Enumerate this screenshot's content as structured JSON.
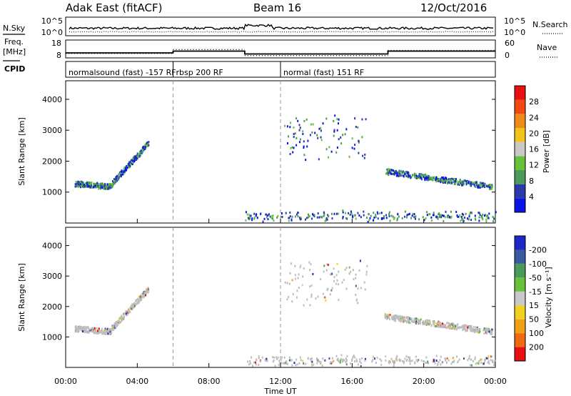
{
  "header": {
    "radar": "Adak East (fitACF)",
    "beam": "Beam 16",
    "date": "12/Oct/2016"
  },
  "noise_panel": {
    "left_label": "N.Sky",
    "right_label": "N.Search",
    "left_ticks": [
      "10^5",
      "10^0"
    ],
    "right_ticks": [
      "10^5",
      "10^0"
    ]
  },
  "freq_panel": {
    "left_label_line1": "Freq.",
    "left_label_line2": "[MHz]",
    "right_label": "Nave",
    "left_ticks": [
      "18",
      "8"
    ],
    "right_ticks": [
      "60",
      "0"
    ],
    "freq_mhz_segments": [
      {
        "start_h": 0,
        "end_h": 6,
        "value": 10.8
      },
      {
        "start_h": 6,
        "end_h": 10,
        "value": 11.8
      },
      {
        "start_h": 10,
        "end_h": 18,
        "value": 10.2
      },
      {
        "start_h": 18,
        "end_h": 24,
        "value": 11.8
      }
    ],
    "nave_segments": [
      {
        "start_h": 0,
        "end_h": 6,
        "value": 15
      },
      {
        "start_h": 6,
        "end_h": 10,
        "value": 28
      },
      {
        "start_h": 10,
        "end_h": 18,
        "value": 8
      },
      {
        "start_h": 18,
        "end_h": 24,
        "value": 25
      }
    ]
  },
  "cpid": {
    "label": "CPID",
    "modes": [
      {
        "name": "normalsound (fast) -157 RF",
        "start_h": 0
      },
      {
        "name": "rbsp 200 RF",
        "start_h": 6
      },
      {
        "name": "normal (fast) 151 RF",
        "start_h": 12
      }
    ]
  },
  "colors": {
    "power_scale": [
      "#0a14e6",
      "#2a3aa8",
      "#4a9a5a",
      "#66c23a",
      "#c8c8c8",
      "#f0c418",
      "#f08a1a",
      "#f04a12",
      "#e81010"
    ],
    "velocity_scale": [
      "#1e28c8",
      "#3a5aa0",
      "#4a9a5a",
      "#66c23a",
      "#c8c8c8",
      "#f0d020",
      "#f0a018",
      "#f06a14",
      "#e81010"
    ],
    "gray_scatter": "#bdbdbd",
    "dashed_marker": "#999999"
  },
  "chart_data": [
    {
      "type": "heatmap",
      "title": "",
      "xlabel": "",
      "ylabel": "Slant Range [km]",
      "ylim": [
        0,
        4600
      ],
      "xlim_hours": [
        0,
        24
      ],
      "y_ticks": [
        "1000",
        "2000",
        "3000",
        "4000"
      ],
      "colorbar_label": "Power [dB]",
      "colorbar_ticks": [
        "4",
        "8",
        "12",
        "16",
        "20",
        "24",
        "28"
      ],
      "colorbar_range": [
        0,
        32
      ],
      "regions": [
        {
          "name": "morning band",
          "start_h": 0.5,
          "end_h": 4.6,
          "range_km_start": 1300,
          "range_km_end": 2600
        },
        {
          "name": "midday sparse echoes",
          "start_h": 12.2,
          "end_h": 16.8,
          "range_km_start": 2100,
          "range_km_end": 3500
        },
        {
          "name": "evening band",
          "start_h": 17.8,
          "end_h": 23.8,
          "range_km_start": 1700,
          "range_km_end": 1200
        },
        {
          "name": "near-range ground scatter",
          "start_h": 10.0,
          "end_h": 24.0,
          "range_km_start": 150,
          "range_km_end": 350
        }
      ]
    },
    {
      "type": "heatmap",
      "title": "",
      "xlabel": "Time UT",
      "ylabel": "Slant Range [km]",
      "ylim": [
        0,
        4600
      ],
      "xlim_hours": [
        0,
        24
      ],
      "y_ticks": [
        "1000",
        "2000",
        "3000",
        "4000"
      ],
      "x_ticks": [
        "00:00",
        "04:00",
        "08:00",
        "12:00",
        "16:00",
        "20:00",
        "00:00"
      ],
      "colorbar_label": "Velocity [m s⁻¹]",
      "colorbar_ticks": [
        "200",
        "100",
        "50",
        "15",
        "-15",
        "-50",
        "-100",
        "-200"
      ],
      "regions": [
        {
          "name": "morning band",
          "start_h": 0.5,
          "end_h": 4.6,
          "range_km_start": 1300,
          "range_km_end": 2600
        },
        {
          "name": "midday sparse echoes",
          "start_h": 12.2,
          "end_h": 16.8,
          "range_km_start": 2100,
          "range_km_end": 3500
        },
        {
          "name": "evening band",
          "start_h": 17.8,
          "end_h": 23.8,
          "range_km_start": 1700,
          "range_km_end": 1200
        },
        {
          "name": "near-range ground scatter",
          "start_h": 10.0,
          "end_h": 24.0,
          "range_km_start": 150,
          "range_km_end": 350
        }
      ]
    }
  ]
}
